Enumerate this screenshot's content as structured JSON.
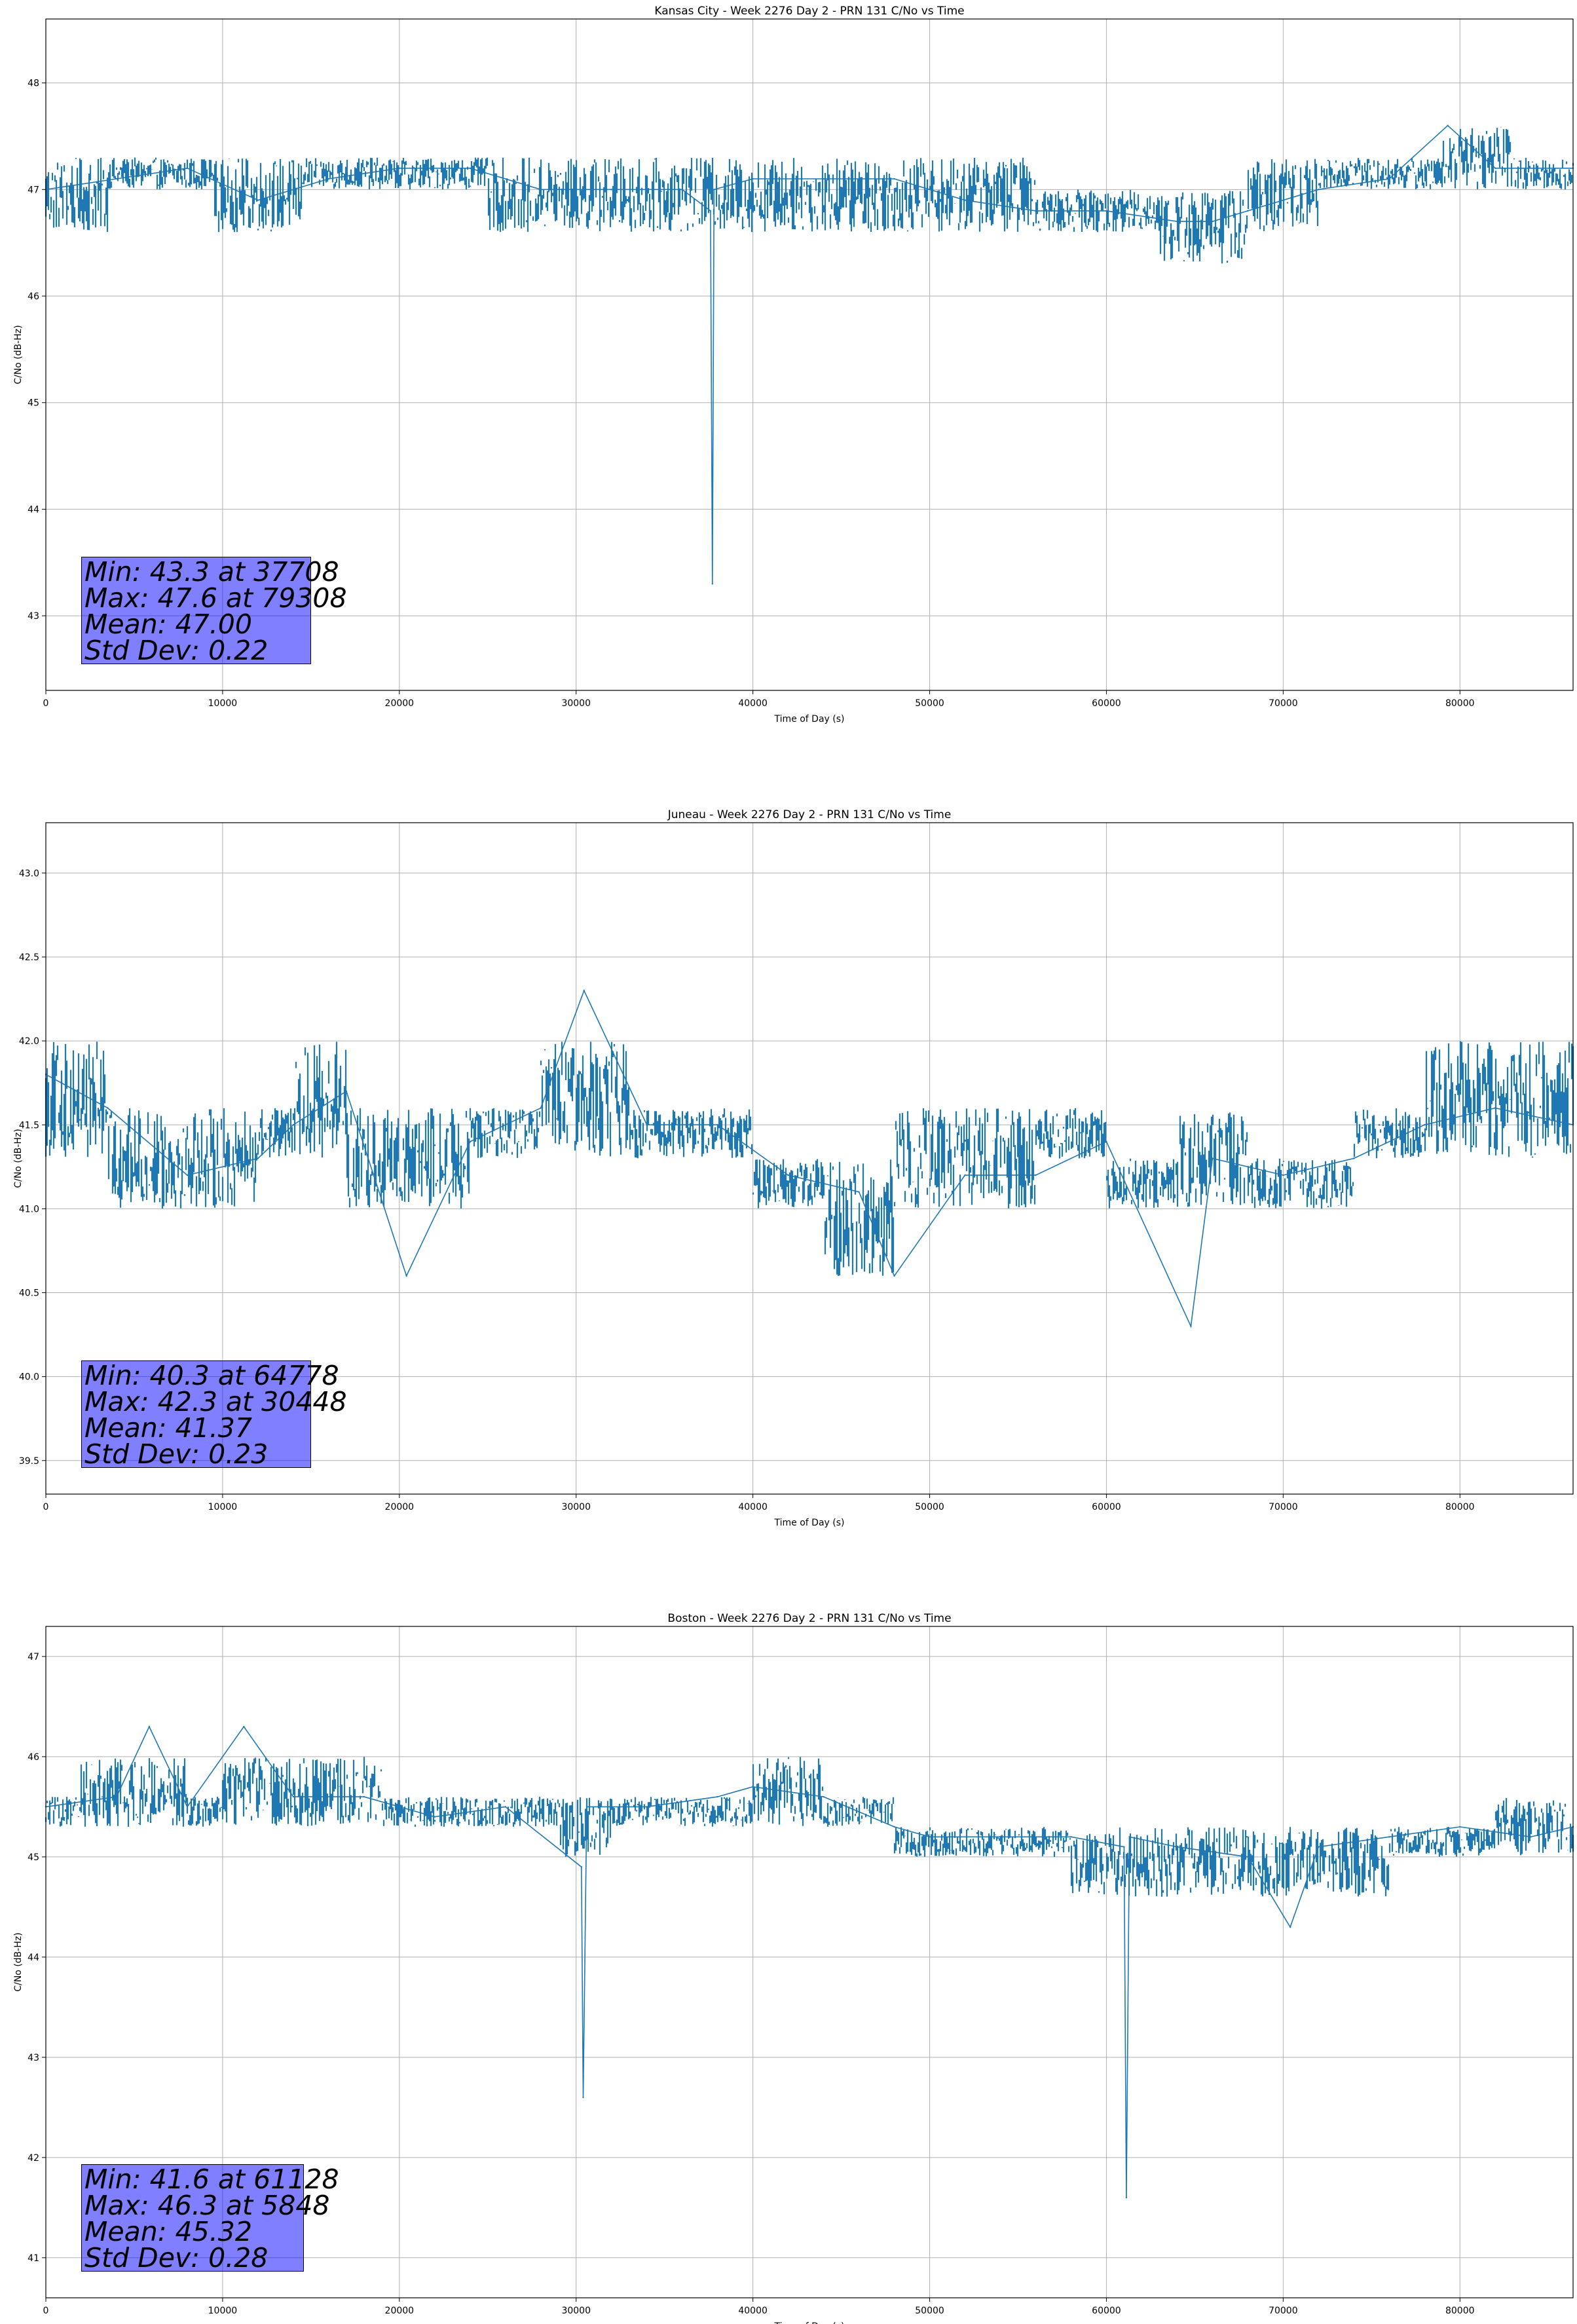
{
  "colors": {
    "series": "#1f77b4",
    "stats_box_fill": "#8080ff",
    "grid": "#b0b0b0"
  },
  "chart_data": [
    {
      "type": "line",
      "title": "Kansas City - Week 2276 Day 2 - PRN 131 C/No vs Time",
      "xlabel": "Time of Day (s)",
      "ylabel": "C/No (dB-Hz)",
      "xlim": [
        0,
        86400
      ],
      "ylim": [
        42.3,
        48.6
      ],
      "xticks": [
        0,
        10000,
        20000,
        30000,
        40000,
        50000,
        60000,
        70000,
        80000
      ],
      "yticks": [
        43,
        44,
        45,
        46,
        47,
        48
      ],
      "grid": true,
      "stats": [
        "Min: 43.3 at 37708",
        "Max: 47.6 at 79308",
        "Mean: 47.00",
        "Std Dev: 0.22"
      ],
      "series": [
        {
          "x": [
            0,
            4000,
            8000,
            12000,
            16000,
            20000,
            24000,
            28000,
            32000,
            36000,
            37600,
            37708,
            37800,
            40000,
            44000,
            48000,
            52000,
            56000,
            60000,
            64000,
            66000,
            68000,
            72000,
            76000,
            79308,
            82000,
            86400
          ],
          "y": [
            47.0,
            47.1,
            47.2,
            46.9,
            47.1,
            47.2,
            47.2,
            47.0,
            47.0,
            47.0,
            46.8,
            43.3,
            47.0,
            47.1,
            47.1,
            47.1,
            46.9,
            46.8,
            46.8,
            46.7,
            46.7,
            46.8,
            47.0,
            47.1,
            47.6,
            47.2,
            47.2
          ],
          "band": [
            [
              0,
              46.6,
              47.3
            ],
            [
              3500,
              47.0,
              47.3
            ],
            [
              9500,
              46.6,
              47.3
            ],
            [
              14500,
              47.0,
              47.3
            ],
            [
              25000,
              46.6,
              47.3
            ],
            [
              36000,
              46.6,
              47.3
            ],
            [
              39000,
              46.6,
              47.3
            ],
            [
              51000,
              46.6,
              47.3
            ],
            [
              56000,
              46.6,
              47.0
            ],
            [
              60000,
              46.6,
              47.0
            ],
            [
              63000,
              46.3,
              47.0
            ],
            [
              68000,
              46.6,
              47.3
            ],
            [
              72000,
              47.0,
              47.3
            ],
            [
              79000,
              47.0,
              47.6
            ],
            [
              83000,
              47.0,
              47.3
            ],
            [
              86400,
              47.0,
              47.3
            ]
          ]
        }
      ]
    },
    {
      "type": "line",
      "title": "Juneau - Week 2276 Day 2 - PRN 131 C/No vs Time",
      "xlabel": "Time of Day (s)",
      "ylabel": "C/No (dB-Hz)",
      "xlim": [
        0,
        86400
      ],
      "ylim": [
        39.3,
        43.3
      ],
      "xticks": [
        0,
        10000,
        20000,
        30000,
        40000,
        50000,
        60000,
        70000,
        80000
      ],
      "yticks": [
        39.5,
        40.0,
        40.5,
        41.0,
        41.5,
        42.0,
        42.5,
        43.0
      ],
      "grid": true,
      "stats": [
        "Min: 40.3 at 64778",
        "Max: 42.3 at 30448",
        "Mean: 41.37",
        "Std Dev: 0.23"
      ],
      "series": [
        {
          "x": [
            0,
            3500,
            8000,
            12000,
            14000,
            17000,
            20400,
            24000,
            28000,
            30448,
            34000,
            38000,
            42000,
            46000,
            48000,
            52000,
            56000,
            60000,
            64778,
            66000,
            70000,
            74000,
            78000,
            82000,
            86400
          ],
          "y": [
            41.8,
            41.6,
            41.2,
            41.3,
            41.5,
            41.7,
            40.6,
            41.4,
            41.6,
            42.3,
            41.5,
            41.5,
            41.2,
            41.1,
            40.6,
            41.2,
            41.2,
            41.4,
            40.3,
            41.3,
            41.2,
            41.3,
            41.5,
            41.6,
            41.5
          ],
          "band": [
            [
              0,
              41.3,
              42.0
            ],
            [
              3500,
              41.0,
              41.6
            ],
            [
              12000,
              41.3,
              41.6
            ],
            [
              14000,
              41.3,
              42.0
            ],
            [
              17000,
              41.0,
              41.6
            ],
            [
              24000,
              41.3,
              41.6
            ],
            [
              28000,
              41.3,
              42.0
            ],
            [
              33000,
              41.3,
              41.6
            ],
            [
              40000,
              41.0,
              41.3
            ],
            [
              44000,
              40.6,
              41.3
            ],
            [
              48000,
              41.0,
              41.6
            ],
            [
              56000,
              41.3,
              41.6
            ],
            [
              60000,
              41.0,
              41.3
            ],
            [
              64000,
              41.0,
              41.6
            ],
            [
              68000,
              41.0,
              41.3
            ],
            [
              74000,
              41.3,
              41.6
            ],
            [
              78000,
              41.3,
              42.0
            ],
            [
              86400,
              41.3,
              42.0
            ]
          ]
        }
      ]
    },
    {
      "type": "line",
      "title": "Boston - Week 2276 Day 2 - PRN 131 C/No vs Time",
      "xlabel": "Time of Day (s)",
      "ylabel": "C/No (dB-Hz)",
      "xlim": [
        0,
        86400
      ],
      "ylim": [
        40.6,
        47.3
      ],
      "xticks": [
        0,
        10000,
        20000,
        30000,
        40000,
        50000,
        60000,
        70000,
        80000
      ],
      "yticks": [
        41,
        42,
        43,
        44,
        45,
        46,
        47
      ],
      "grid": true,
      "stats": [
        "Min: 41.6 at 61128",
        "Max: 46.3 at 5848",
        "Mean: 45.32",
        "Std Dev: 0.28"
      ],
      "series": [
        {
          "x": [
            0,
            4000,
            5848,
            8000,
            11200,
            14000,
            18000,
            22000,
            26000,
            30300,
            30400,
            30600,
            34000,
            38000,
            40000,
            44000,
            48000,
            50000,
            54000,
            58000,
            61000,
            61128,
            61300,
            64000,
            68000,
            70400,
            72000,
            76000,
            80000,
            84000,
            86400
          ],
          "y": [
            45.5,
            45.6,
            46.3,
            45.5,
            46.3,
            45.6,
            45.6,
            45.4,
            45.5,
            44.9,
            42.6,
            45.5,
            45.5,
            45.6,
            45.7,
            45.6,
            45.3,
            45.2,
            45.2,
            45.2,
            45.1,
            41.6,
            45.2,
            45.1,
            45.0,
            44.3,
            45.1,
            45.2,
            45.3,
            45.2,
            45.3
          ],
          "band": [
            [
              0,
              45.3,
              45.6
            ],
            [
              2000,
              45.3,
              46.0
            ],
            [
              8000,
              45.3,
              45.6
            ],
            [
              10000,
              45.3,
              46.0
            ],
            [
              19000,
              45.3,
              45.6
            ],
            [
              29000,
              45.0,
              45.6
            ],
            [
              32000,
              45.3,
              45.6
            ],
            [
              40000,
              45.3,
              46.0
            ],
            [
              44000,
              45.3,
              45.6
            ],
            [
              48000,
              45.0,
              45.3
            ],
            [
              52000,
              45.0,
              45.3
            ],
            [
              58000,
              44.6,
              45.3
            ],
            [
              62000,
              44.6,
              45.3
            ],
            [
              68000,
              44.6,
              45.3
            ],
            [
              72000,
              44.6,
              45.3
            ],
            [
              76000,
              45.0,
              45.3
            ],
            [
              82000,
              45.0,
              45.6
            ],
            [
              86400,
              45.0,
              45.3
            ]
          ]
        }
      ]
    }
  ]
}
